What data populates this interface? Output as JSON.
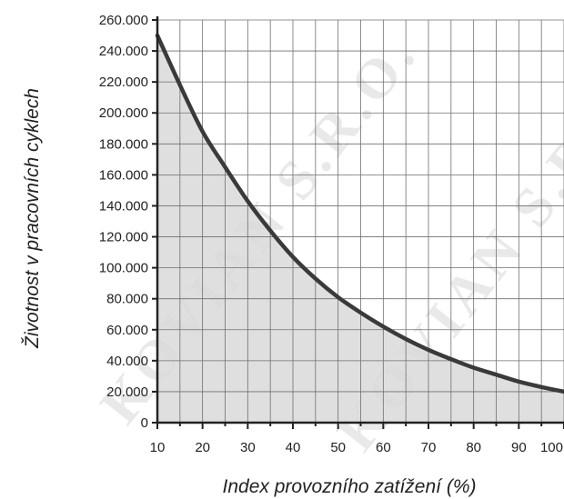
{
  "chart_data": {
    "type": "area",
    "title": "",
    "xlabel": "Index provozního zatížení (%)",
    "ylabel": "Životnost v pracovních cyklech",
    "xlim": [
      10,
      100
    ],
    "ylim": [
      0,
      260000
    ],
    "x_ticks": [
      10,
      20,
      30,
      40,
      50,
      60,
      70,
      80,
      90,
      100
    ],
    "x_tick_labels": [
      "10",
      "20",
      "30",
      "40",
      "50",
      "60",
      "70",
      "80",
      "90",
      "100"
    ],
    "y_ticks": [
      0,
      20000,
      40000,
      60000,
      80000,
      100000,
      120000,
      140000,
      160000,
      180000,
      200000,
      220000,
      240000,
      260000
    ],
    "y_tick_labels": [
      "0",
      "20.000",
      "40.000",
      "60.000",
      "80.000",
      "100.000",
      "120.000",
      "140.000",
      "160.000",
      "180.000",
      "200.000",
      "220.000",
      "240.000",
      "260.000"
    ],
    "grid": true,
    "series": [
      {
        "x": [
          10,
          15,
          20,
          25,
          30,
          35,
          40,
          45,
          50,
          55,
          60,
          65,
          70,
          75,
          80,
          85,
          90,
          95,
          100
        ],
        "values": [
          250000,
          218000,
          188000,
          165000,
          143000,
          124000,
          107000,
          93000,
          81000,
          71000,
          62000,
          54000,
          47000,
          41000,
          35500,
          31000,
          26500,
          23000,
          20000
        ]
      }
    ],
    "colors": {
      "line": "#3a3a3a",
      "fill": "#d9d9d9",
      "grid": "#6f6f6f",
      "axis": "#222222"
    }
  },
  "watermark": {
    "text": "KOVIAN S.R.O."
  }
}
